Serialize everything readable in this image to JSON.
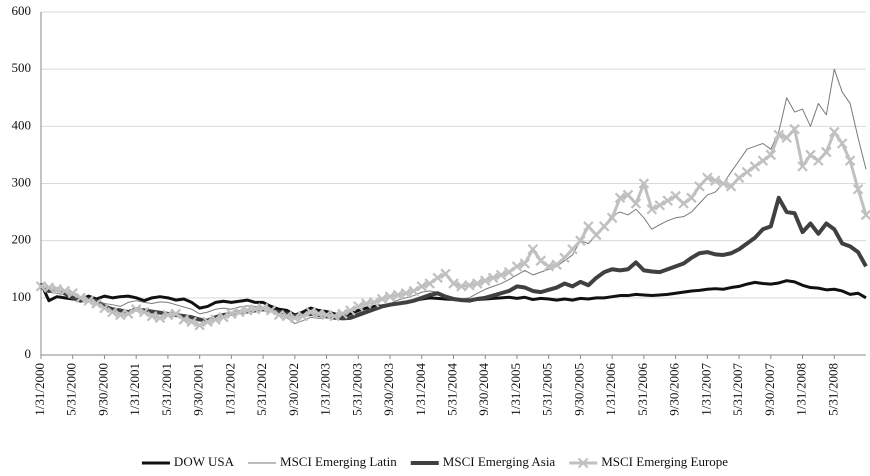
{
  "chart_data": {
    "type": "line",
    "categories": [
      "1/31/2000",
      null,
      null,
      null,
      "5/31/2000",
      null,
      null,
      null,
      "9/30/2000",
      null,
      null,
      null,
      "1/31/2001",
      null,
      null,
      null,
      "5/31/2001",
      null,
      null,
      null,
      "9/30/2001",
      null,
      null,
      null,
      "1/31/2002",
      null,
      null,
      null,
      "5/31/2002",
      null,
      null,
      null,
      "9/30/2002",
      null,
      null,
      null,
      "1/31/2003",
      null,
      null,
      null,
      "5/31/2003",
      null,
      null,
      null,
      "9/30/2003",
      null,
      null,
      null,
      "1/31/2004",
      null,
      null,
      null,
      "5/31/2004",
      null,
      null,
      null,
      "9/30/2004",
      null,
      null,
      null,
      "1/31/2005",
      null,
      null,
      null,
      "5/31/2005",
      null,
      null,
      null,
      "9/30/2005",
      null,
      null,
      null,
      "1/31/2006",
      null,
      null,
      null,
      "5/31/2006",
      null,
      null,
      null,
      "9/30/2006",
      null,
      null,
      null,
      "1/31/2007",
      null,
      null,
      null,
      "5/31/2007",
      null,
      null,
      null,
      "9/30/2007",
      null,
      null,
      null,
      "1/31/2008",
      null,
      null,
      null,
      "5/31/2008",
      null,
      null,
      null,
      null
    ],
    "series": [
      {
        "name": "DOW USA",
        "color": "#111111",
        "values": [
          125,
          95,
          102,
          100,
          98,
          97,
          103,
          98,
          103,
          100,
          102,
          103,
          100,
          95,
          100,
          102,
          100,
          96,
          98,
          92,
          82,
          85,
          92,
          94,
          92,
          94,
          96,
          92,
          92,
          85,
          80,
          78,
          70,
          75,
          82,
          78,
          76,
          72,
          68,
          72,
          78,
          82,
          85,
          86,
          88,
          90,
          92,
          95,
          98,
          100,
          99,
          98,
          97,
          96,
          96,
          97,
          98,
          99,
          100,
          101,
          99,
          101,
          97,
          99,
          98,
          96,
          98,
          96,
          99,
          98,
          100,
          100,
          102,
          104,
          104,
          106,
          105,
          104,
          105,
          106,
          108,
          110,
          112,
          113,
          115,
          116,
          115,
          118,
          120,
          124,
          127,
          125,
          124,
          126,
          130,
          128,
          122,
          118,
          117,
          114,
          115,
          112,
          106,
          108,
          100
        ]
      },
      {
        "name": "MSCI Emerging Latin",
        "color": "#7a7a7a",
        "values": [
          115,
          110,
          108,
          105,
          100,
          98,
          100,
          96,
          90,
          88,
          85,
          92,
          95,
          92,
          90,
          93,
          92,
          88,
          84,
          80,
          72,
          75,
          80,
          82,
          80,
          84,
          86,
          85,
          83,
          78,
          70,
          65,
          55,
          60,
          66,
          64,
          65,
          62,
          63,
          68,
          74,
          78,
          80,
          84,
          90,
          96,
          100,
          104,
          110,
          112,
          110,
          100,
          95,
          98,
          100,
          108,
          115,
          120,
          125,
          132,
          140,
          148,
          140,
          145,
          150,
          155,
          165,
          175,
          200,
          195,
          210,
          225,
          245,
          250,
          245,
          255,
          240,
          220,
          228,
          235,
          240,
          242,
          250,
          265,
          280,
          285,
          300,
          320,
          340,
          360,
          365,
          370,
          360,
          390,
          450,
          425,
          430,
          400,
          440,
          420,
          500,
          460,
          440,
          380,
          325
        ]
      },
      {
        "name": "MSCI Emerging Asia",
        "color": "#404040",
        "values": [
          120,
          112,
          115,
          108,
          100,
          95,
          98,
          92,
          85,
          80,
          78,
          75,
          80,
          78,
          76,
          74,
          72,
          70,
          68,
          66,
          62,
          60,
          66,
          70,
          72,
          75,
          76,
          78,
          80,
          78,
          75,
          72,
          68,
          70,
          72,
          70,
          68,
          66,
          64,
          65,
          70,
          75,
          80,
          85,
          88,
          90,
          92,
          95,
          100,
          105,
          108,
          102,
          98,
          96,
          95,
          98,
          100,
          104,
          108,
          112,
          120,
          118,
          112,
          110,
          114,
          118,
          125,
          120,
          128,
          122,
          135,
          145,
          150,
          148,
          150,
          162,
          148,
          146,
          145,
          150,
          155,
          160,
          170,
          178,
          180,
          176,
          175,
          178,
          185,
          195,
          205,
          220,
          225,
          275,
          250,
          248,
          215,
          230,
          212,
          230,
          220,
          195,
          190,
          180,
          155
        ]
      },
      {
        "name": "MSCI Emerging Europe",
        "color": "#c0c0c0",
        "marker": "x",
        "values": [
          120,
          118,
          115,
          112,
          108,
          100,
          95,
          90,
          82,
          75,
          70,
          72,
          80,
          75,
          68,
          65,
          70,
          72,
          62,
          58,
          52,
          58,
          62,
          66,
          72,
          75,
          78,
          80,
          82,
          78,
          70,
          68,
          65,
          68,
          75,
          72,
          70,
          68,
          72,
          78,
          85,
          90,
          92,
          98,
          102,
          105,
          108,
          112,
          120,
          125,
          135,
          142,
          125,
          120,
          122,
          125,
          130,
          135,
          140,
          145,
          155,
          160,
          185,
          165,
          155,
          158,
          170,
          185,
          200,
          225,
          210,
          225,
          240,
          275,
          280,
          265,
          300,
          255,
          262,
          270,
          278,
          265,
          275,
          295,
          310,
          305,
          300,
          295,
          310,
          320,
          330,
          340,
          350,
          385,
          380,
          395,
          330,
          350,
          340,
          355,
          390,
          370,
          340,
          290,
          245
        ]
      }
    ],
    "ylim": [
      0,
      600
    ],
    "yticks": [
      0,
      100,
      200,
      300,
      400,
      500,
      600
    ],
    "grid": true,
    "legend": "bottom"
  }
}
